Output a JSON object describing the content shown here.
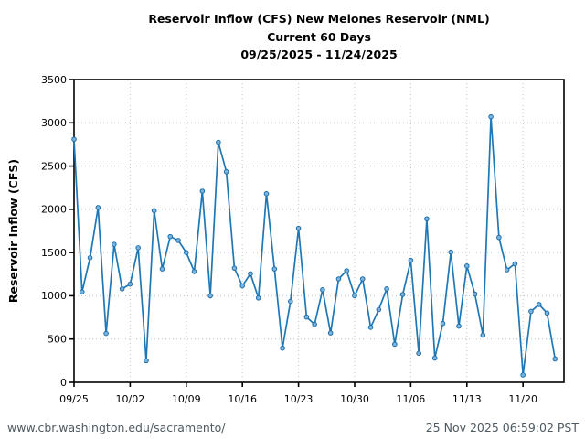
{
  "header": {
    "title_line1": "Reservoir Inflow (CFS) New Melones Reservoir (NML)",
    "title_line2": "Current 60 Days",
    "title_line3": "09/25/2025 - 11/24/2025"
  },
  "footer": {
    "url": "www.cbr.washington.edu/sacramento/",
    "timestamp": "25 Nov 2025 06:59:02 PST"
  },
  "chart_data": {
    "type": "line",
    "title": "Reservoir Inflow (CFS) New Melones Reservoir (NML) — Current 60 Days — 09/25/2025 - 11/24/2025",
    "xlabel": "",
    "ylabel": "Reservoir Inflow (CFS)",
    "ylim": [
      0,
      3500
    ],
    "yticks": [
      0,
      500,
      1000,
      1500,
      2000,
      2500,
      3000,
      3500
    ],
    "xtick_labels": [
      "09/25",
      "10/02",
      "10/09",
      "10/16",
      "10/23",
      "10/30",
      "11/06",
      "11/13",
      "11/20"
    ],
    "xtick_days": [
      0,
      7,
      14,
      21,
      28,
      35,
      42,
      49,
      56
    ],
    "grid": true,
    "legend": "none",
    "x": [
      "09/25",
      "09/26",
      "09/27",
      "09/28",
      "09/29",
      "09/30",
      "10/01",
      "10/02",
      "10/03",
      "10/04",
      "10/05",
      "10/06",
      "10/07",
      "10/08",
      "10/09",
      "10/10",
      "10/11",
      "10/12",
      "10/13",
      "10/14",
      "10/15",
      "10/16",
      "10/17",
      "10/18",
      "10/19",
      "10/20",
      "10/21",
      "10/22",
      "10/23",
      "10/24",
      "10/25",
      "10/26",
      "10/27",
      "10/28",
      "10/29",
      "10/30",
      "10/31",
      "11/01",
      "11/02",
      "11/03",
      "11/04",
      "11/05",
      "11/06",
      "11/07",
      "11/08",
      "11/09",
      "11/10",
      "11/11",
      "11/12",
      "11/13",
      "11/14",
      "11/15",
      "11/16",
      "11/17",
      "11/18",
      "11/19",
      "11/20",
      "11/21",
      "11/22",
      "11/23",
      "11/24"
    ],
    "values": [
      2810,
      1045,
      1440,
      2020,
      565,
      1595,
      1080,
      1135,
      1555,
      250,
      1985,
      1310,
      1685,
      1640,
      1500,
      1280,
      2210,
      1000,
      2775,
      2435,
      1320,
      1115,
      1255,
      975,
      2180,
      1310,
      395,
      935,
      1780,
      755,
      670,
      1070,
      570,
      1195,
      1290,
      1000,
      1195,
      635,
      840,
      1080,
      440,
      1015,
      1410,
      335,
      1890,
      280,
      680,
      1505,
      650,
      1345,
      1020,
      545,
      3070,
      1675,
      1300,
      1370,
      85,
      820,
      900,
      800,
      270
    ]
  },
  "colors": {
    "line": "#1f77b4",
    "marker_fill": "#79b5df",
    "marker_edge": "#1c6dab",
    "grid": "#c4c4c4",
    "axis": "#000000",
    "footer_text": "#4e5a61"
  }
}
